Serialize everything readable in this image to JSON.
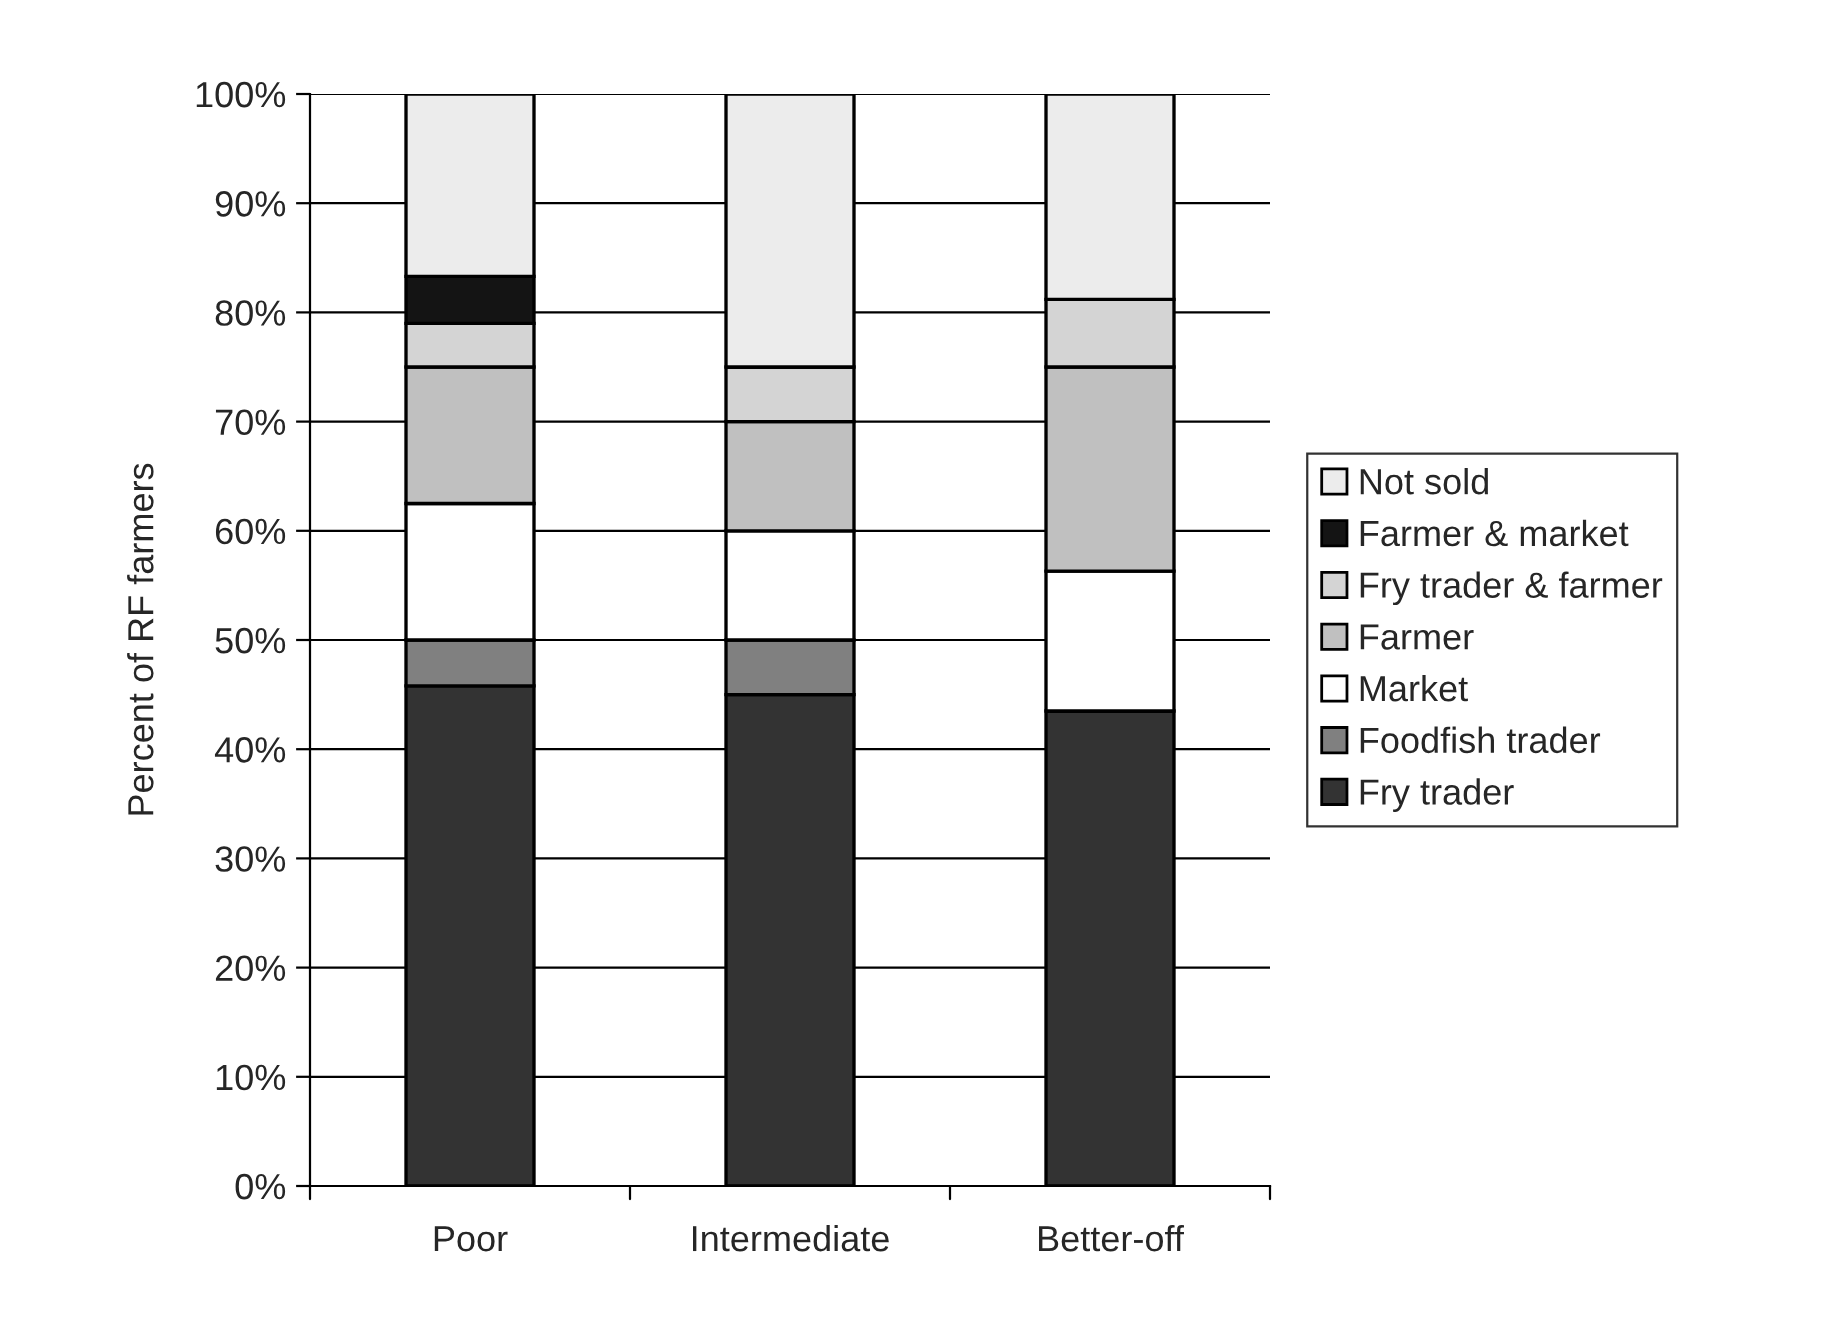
{
  "chart_data": {
    "type": "bar",
    "stacked": true,
    "ylabel": "Percent of RF farmers",
    "categories": [
      "Poor",
      "Intermediate",
      "Better-off"
    ],
    "series": [
      {
        "name": "Fry trader",
        "color": "#333333",
        "values": [
          45.8,
          45,
          43.5
        ]
      },
      {
        "name": "Foodfish trader",
        "color": "#808080",
        "values": [
          4.2,
          5,
          0
        ]
      },
      {
        "name": "Market",
        "color": "#ffffff",
        "values": [
          12.5,
          10,
          12.8
        ]
      },
      {
        "name": "Farmer",
        "color": "#c0c0c0",
        "values": [
          12.5,
          10,
          18.7
        ]
      },
      {
        "name": "Fry trader & farmer",
        "color": "#d4d4d4",
        "values": [
          4,
          5,
          6.2
        ]
      },
      {
        "name": "Farmer & market",
        "color": "#141414",
        "values": [
          4.3,
          0,
          0
        ]
      },
      {
        "name": "Not sold",
        "color": "#ececec",
        "values": [
          16.7,
          25,
          18.8
        ]
      }
    ],
    "ylim": [
      0,
      100
    ],
    "yticks": [
      {
        "value": 0,
        "label": "0%"
      },
      {
        "value": 10,
        "label": "10%"
      },
      {
        "value": 20,
        "label": "20%"
      },
      {
        "value": 30,
        "label": "30%"
      },
      {
        "value": 40,
        "label": "40%"
      },
      {
        "value": 50,
        "label": "50%"
      },
      {
        "value": 60,
        "label": "60%"
      },
      {
        "value": 70,
        "label": "70%"
      },
      {
        "value": 80,
        "label": "80%"
      },
      {
        "value": 90,
        "label": "90%"
      },
      {
        "value": 100,
        "label": "100%"
      }
    ],
    "grid": "y",
    "legend": "right"
  }
}
